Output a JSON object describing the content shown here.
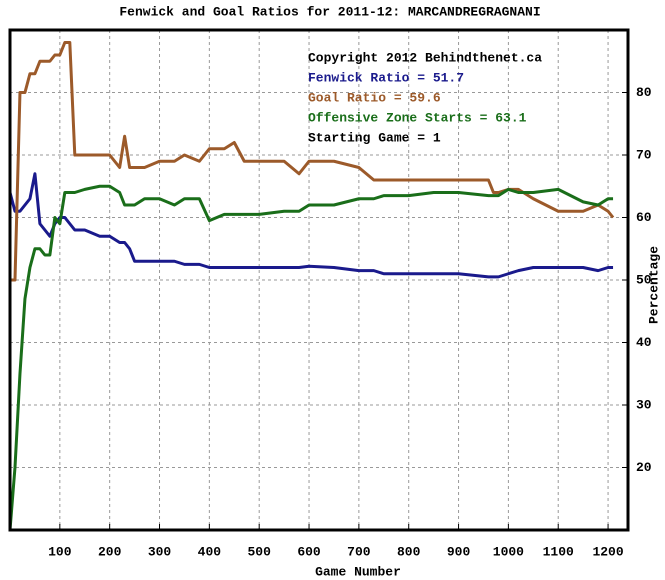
{
  "chart_data": {
    "type": "line",
    "title": "Fenwick and Goal Ratios for 2011-12: MARCANDREGRAGNANI",
    "x_label": "Game Number",
    "y_label": "Percentage",
    "annotations": [
      {
        "text": "Copyright 2012 Behindthenet.ca",
        "color": "#000000"
      },
      {
        "text": "Fenwick Ratio = 51.7",
        "color": "#1a1a8c"
      },
      {
        "text": "Goal Ratio = 59.6",
        "color": "#9c5a2a"
      },
      {
        "text": "Offensive Zone Starts = 63.1",
        "color": "#1a6e1a"
      },
      {
        "text": "Starting Game = 1",
        "color": "#000000"
      }
    ],
    "x": [
      0,
      10,
      20,
      30,
      40,
      50,
      60,
      70,
      80,
      90,
      100,
      110,
      120,
      130,
      150,
      180,
      200,
      220,
      230,
      240,
      250,
      270,
      300,
      330,
      350,
      380,
      400,
      430,
      450,
      470,
      500,
      550,
      580,
      600,
      650,
      700,
      730,
      750,
      800,
      850,
      900,
      960,
      970,
      980,
      1000,
      1020,
      1050,
      1100,
      1150,
      1180,
      1200,
      1210
    ],
    "series": [
      {
        "color": "#1a1a8c",
        "values": [
          64,
          61,
          61,
          62,
          63,
          67,
          59,
          58,
          57,
          59,
          60,
          60,
          59,
          58,
          58,
          57,
          57,
          56,
          56,
          55,
          53,
          53,
          53,
          53,
          52.5,
          52.5,
          52,
          52,
          52,
          52,
          52,
          52,
          52,
          52.2,
          52,
          51.5,
          51.5,
          51,
          51,
          51,
          51,
          50.5,
          50.5,
          50.5,
          51,
          51.5,
          52,
          52,
          52,
          51.5,
          52,
          52
        ]
      },
      {
        "color": "#9c5a2a",
        "values": [
          50,
          50,
          80,
          80,
          83,
          83,
          85,
          85,
          85,
          86,
          86,
          88,
          88,
          70,
          70,
          70,
          70,
          68,
          73,
          68,
          68,
          68,
          69,
          69,
          70,
          69,
          71,
          71,
          72,
          69,
          69,
          69,
          67,
          69,
          69,
          68,
          66,
          66,
          66,
          66,
          66,
          66,
          64,
          64,
          64.5,
          64.5,
          63,
          61,
          61,
          62,
          61,
          60
        ]
      },
      {
        "color": "#1a6e1a",
        "values": [
          10,
          20,
          35,
          47,
          52,
          55,
          55,
          54,
          54,
          60,
          59,
          64,
          64,
          64,
          64.5,
          65,
          65,
          64,
          62,
          62,
          62,
          63,
          63,
          62,
          63,
          63,
          59.5,
          60.5,
          60.5,
          60.5,
          60.5,
          61,
          61,
          62,
          62,
          63,
          63,
          63.5,
          63.5,
          64,
          64,
          63.5,
          63.5,
          63.5,
          64.5,
          64,
          64,
          64.5,
          62.5,
          62,
          63,
          63
        ]
      }
    ],
    "xlim": [
      0,
      1240
    ],
    "ylim": [
      10,
      90
    ],
    "xticks": [
      100,
      200,
      300,
      400,
      500,
      600,
      700,
      800,
      900,
      1000,
      1100,
      1200
    ],
    "yticks": [
      20,
      30,
      40,
      50,
      60,
      70,
      80
    ],
    "grid": true
  }
}
